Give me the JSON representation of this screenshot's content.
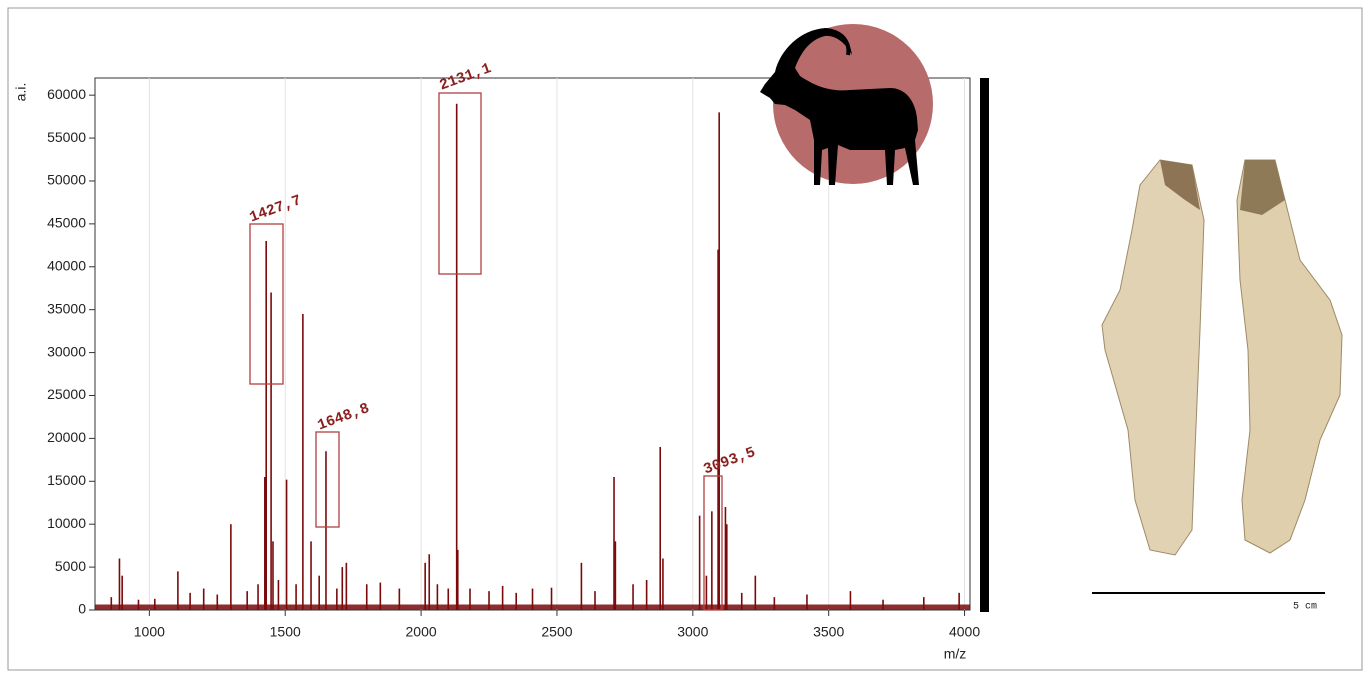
{
  "chart_data": {
    "type": "bar",
    "x_label": "m/z",
    "y_label": "a.i.",
    "annotations": [
      "1427,7",
      "1648,8",
      "2131,1",
      "3093,5"
    ],
    "color": "#7a0a0a",
    "x": [
      860,
      890,
      900,
      960,
      1020,
      1105,
      1150,
      1200,
      1250,
      1300,
      1360,
      1400,
      1425,
      1430,
      1448,
      1455,
      1475,
      1505,
      1540,
      1565,
      1595,
      1625,
      1650,
      1690,
      1710,
      1725,
      1800,
      1850,
      1920,
      2015,
      2030,
      2060,
      2100,
      2131,
      2135,
      2180,
      2250,
      2300,
      2350,
      2410,
      2480,
      2590,
      2640,
      2710,
      2715,
      2780,
      2830,
      2880,
      2890,
      3025,
      3050,
      3070,
      3093,
      3097,
      3120,
      3125,
      3180,
      3230,
      3300,
      3420,
      3580,
      3700,
      3850,
      3980
    ],
    "values": [
      1500,
      6000,
      4000,
      1200,
      1300,
      4500,
      2000,
      2500,
      1800,
      10000,
      2200,
      3000,
      15500,
      43000,
      37000,
      8000,
      3500,
      15200,
      3000,
      34500,
      8000,
      4000,
      18500,
      2500,
      5000,
      5500,
      3000,
      3200,
      2500,
      5500,
      6500,
      3000,
      2500,
      59000,
      7000,
      2500,
      2200,
      2800,
      2000,
      2500,
      2600,
      5500,
      2200,
      15500,
      8000,
      3000,
      3500,
      19000,
      6000,
      11000,
      4000,
      11500,
      42000,
      58000,
      12000,
      10000,
      2000,
      4000,
      1500,
      1800,
      2200,
      1200,
      1500,
      2000
    ],
    "xlim": [
      800,
      4020
    ],
    "ylim": [
      0,
      62000
    ],
    "xticks": [
      1000,
      1500,
      2000,
      2500,
      3000,
      3500,
      4000
    ],
    "yticks": [
      0,
      5000,
      10000,
      15000,
      20000,
      25000,
      30000,
      35000,
      40000,
      45000,
      50000,
      55000,
      60000
    ],
    "grid": "x"
  },
  "figure": {
    "scale_label": "5 cm"
  }
}
